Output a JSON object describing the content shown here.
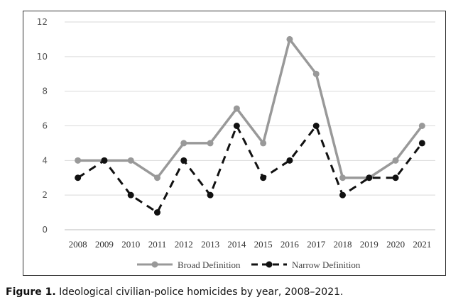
{
  "caption": {
    "label": "Figure 1.",
    "text": "Ideological civilian-police homicides by year, 2008–2021."
  },
  "chart_data": {
    "type": "line",
    "title": "",
    "xlabel": "",
    "ylabel": "",
    "x": [
      "2008",
      "2009",
      "2010",
      "2011",
      "2012",
      "2013",
      "2014",
      "2015",
      "2016",
      "2017",
      "2018",
      "2019",
      "2020",
      "2021"
    ],
    "ylim": [
      0,
      12
    ],
    "yticks": [
      0,
      2,
      4,
      6,
      8,
      10,
      12
    ],
    "grid": true,
    "legend_position": "bottom",
    "series": [
      {
        "name": "Broad Definition",
        "color": "#999999",
        "style": "solid",
        "values": [
          4,
          4,
          4,
          3,
          5,
          5,
          7,
          5,
          11,
          9,
          3,
          3,
          4,
          6
        ]
      },
      {
        "name": "Narrow Definition",
        "color": "#111111",
        "style": "dashed",
        "values": [
          3,
          4,
          2,
          1,
          4,
          2,
          6,
          3,
          4,
          6,
          2,
          3,
          3,
          5
        ]
      }
    ]
  }
}
